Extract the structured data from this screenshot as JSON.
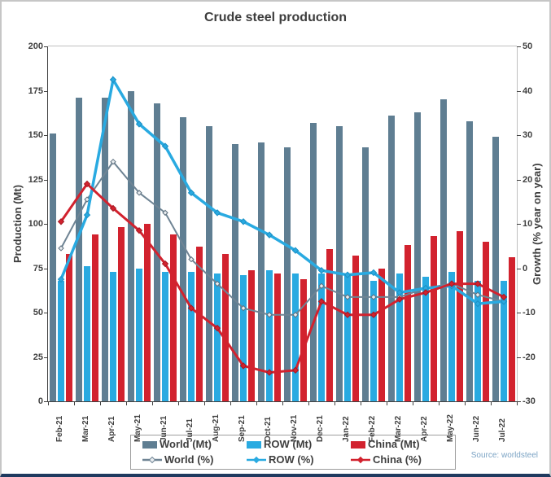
{
  "title": "Crude steel production",
  "source": "Source: worldsteel",
  "left_axis": {
    "label": "Production (Mt)",
    "ticks": [
      0,
      25,
      50,
      75,
      100,
      125,
      150,
      175,
      200
    ]
  },
  "right_axis": {
    "label": "Growth (% year on year)",
    "ticks": [
      -30,
      -20,
      -10,
      0,
      10,
      20,
      30,
      40,
      50
    ]
  },
  "colors": {
    "world_bar": "#5f7e92",
    "row_bar": "#29aae1",
    "china_bar": "#d2222e",
    "world_line": "#6f8494",
    "row_line": "#29aae1",
    "china_line": "#d2222e",
    "text": "#3d3d3d",
    "source_text": "#7ba3c4",
    "bottom_edge": "#1f3a5f"
  },
  "legend": {
    "items": [
      {
        "label": "World (Mt)",
        "type": "bar",
        "color": "#5f7e92"
      },
      {
        "label": "ROW (Mt)",
        "type": "bar",
        "color": "#29aae1"
      },
      {
        "label": "China (Mt)",
        "type": "bar",
        "color": "#d2222e"
      },
      {
        "label": "World (%)",
        "type": "line",
        "color": "#6f8494",
        "marker_fill": "#e9edf0"
      },
      {
        "label": "ROW (%)",
        "type": "line",
        "color": "#29aae1",
        "marker_fill": "#29aae1"
      },
      {
        "label": "China (%)",
        "type": "line",
        "color": "#d2222e",
        "marker_fill": "#d2222e"
      }
    ]
  },
  "chart_data": {
    "type": "bar+line",
    "categories": [
      "Feb-21",
      "Mar-21",
      "Apr-21",
      "May-21",
      "Jun-21",
      "Jul-21",
      "Aug-21",
      "Sep-21",
      "Oct-21",
      "Nov-21",
      "Dec-21",
      "Jan-22",
      "Feb-22",
      "Mar-22",
      "Apr-22",
      "May-22",
      "Jun-22",
      "Jul-22"
    ],
    "ylim_left": [
      0,
      200
    ],
    "ylim_right": [
      -30,
      50
    ],
    "grid": false,
    "legend_position": "bottom",
    "bar_series": [
      {
        "name": "World (Mt)",
        "key": "world",
        "axis": "left",
        "color": "#5f7e92",
        "values": [
          151,
          171,
          171,
          175,
          168,
          160,
          155,
          145,
          146,
          143,
          157,
          155,
          143,
          161,
          163,
          170,
          158,
          149
        ]
      },
      {
        "name": "ROW (Mt)",
        "key": "row",
        "axis": "left",
        "color": "#29aae1",
        "values": [
          68,
          76,
          73,
          75,
          73,
          73,
          72,
          71,
          74,
          72,
          72,
          72,
          68,
          72,
          70,
          73,
          68,
          68
        ]
      },
      {
        "name": "China (Mt)",
        "key": "china",
        "axis": "left",
        "color": "#d2222e",
        "values": [
          83,
          94,
          98,
          100,
          94,
          87,
          83,
          74,
          72,
          69,
          86,
          82,
          75,
          88,
          93,
          96,
          90,
          81
        ]
      }
    ],
    "line_series": [
      {
        "name": "World (%)",
        "key": "world-pct",
        "axis": "right",
        "color": "#6f8494",
        "width": 2,
        "marker_fill": "#e9edf0",
        "marker_stroke": "#5c6f7e",
        "values": [
          4.5,
          15.5,
          24,
          17,
          12.5,
          2,
          -3.5,
          -9,
          -10.5,
          -10.5,
          -4,
          -6.5,
          -6.5,
          -6.5,
          -4.5,
          -3.5,
          -6,
          -7.5
        ]
      },
      {
        "name": "ROW (%)",
        "key": "row-pct",
        "axis": "right",
        "color": "#29aae1",
        "width": 3.5,
        "marker_fill": "#29aae1",
        "marker_stroke": "#1b8fc4",
        "values": [
          -2.5,
          12,
          42.5,
          32.5,
          27.5,
          17,
          12.5,
          10.5,
          7.5,
          4,
          -0.5,
          -1.5,
          -1,
          -5.5,
          -4.5,
          -4,
          -8,
          -7.5
        ]
      },
      {
        "name": "China (%)",
        "key": "china-pct",
        "axis": "right",
        "color": "#d2222e",
        "width": 3,
        "marker_fill": "#d2222e",
        "marker_stroke": "#a51822",
        "values": [
          10.5,
          19,
          13.5,
          8.5,
          1,
          -9,
          -13.5,
          -22,
          -23.5,
          -23,
          -7.5,
          -10.5,
          -10.5,
          -7,
          -5.5,
          -3.5,
          -3.5,
          -6.5
        ]
      }
    ]
  }
}
